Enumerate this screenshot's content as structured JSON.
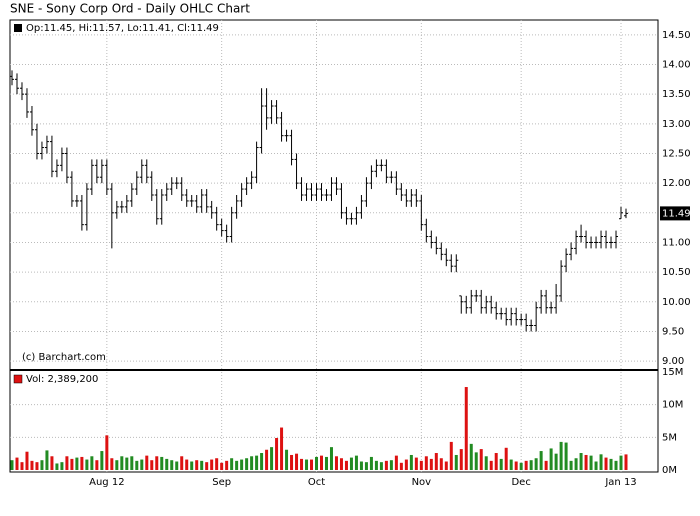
{
  "chart_data": {
    "type": "ohlc",
    "title": "SNE - Sony Corp Ord - Daily OHLC Chart",
    "price_legend": "Op:11.45, Hi:11.57, Lo:11.41, Cl:11.49",
    "volume_legend": "Vol: 2,389,200",
    "credit": "(c) Barchart.com",
    "last_price_label": "11.49",
    "categories": [
      null,
      null,
      null,
      null,
      null,
      null,
      null,
      null,
      null,
      null,
      null,
      null,
      null,
      null,
      null,
      null,
      null,
      null,
      null,
      "Aug 12",
      null,
      null,
      null,
      null,
      null,
      null,
      null,
      null,
      null,
      null,
      null,
      null,
      null,
      null,
      null,
      null,
      null,
      null,
      null,
      null,
      null,
      null,
      "Sep",
      null,
      null,
      null,
      null,
      null,
      null,
      null,
      null,
      null,
      null,
      null,
      null,
      null,
      null,
      null,
      null,
      null,
      null,
      "Oct",
      null,
      null,
      null,
      null,
      null,
      null,
      null,
      null,
      null,
      null,
      null,
      null,
      null,
      null,
      null,
      null,
      null,
      null,
      null,
      null,
      "Nov",
      null,
      null,
      null,
      null,
      null,
      null,
      null,
      null,
      null,
      null,
      null,
      null,
      null,
      null,
      null,
      null,
      null,
      null,
      null,
      "Dec",
      null,
      null,
      null,
      null,
      null,
      null,
      null,
      null,
      null,
      null,
      null,
      null,
      null,
      null,
      null,
      null,
      null,
      null,
      null,
      "Jan 13",
      null
    ],
    "open": [
      13.8,
      13.75,
      13.6,
      13.5,
      13.2,
      12.9,
      12.5,
      12.6,
      12.7,
      12.2,
      12.3,
      12.5,
      12.1,
      11.7,
      11.7,
      11.3,
      11.9,
      12.3,
      12.1,
      12.3,
      11.9,
      11.5,
      11.6,
      11.6,
      11.7,
      11.9,
      12.1,
      12.3,
      12.1,
      11.8,
      11.4,
      11.8,
      11.9,
      12.0,
      12.0,
      11.8,
      11.7,
      11.7,
      11.6,
      11.8,
      11.6,
      11.5,
      11.3,
      11.2,
      11.1,
      11.5,
      11.7,
      11.9,
      12.0,
      12.1,
      12.6,
      13.3,
      13.1,
      13.3,
      13.1,
      12.8,
      12.8,
      12.4,
      12.0,
      11.8,
      11.9,
      11.8,
      11.9,
      11.8,
      11.8,
      12.0,
      11.9,
      11.5,
      11.4,
      11.4,
      11.5,
      11.7,
      12.0,
      12.2,
      12.3,
      12.3,
      12.1,
      12.1,
      11.9,
      11.8,
      11.7,
      11.8,
      11.7,
      11.3,
      11.1,
      11.0,
      10.9,
      10.8,
      10.7,
      10.6,
      10.1,
      10.0,
      9.9,
      10.1,
      10.1,
      9.9,
      10.0,
      9.9,
      9.8,
      9.8,
      9.7,
      9.8,
      9.7,
      9.7,
      9.6,
      9.6,
      9.9,
      10.1,
      9.9,
      9.9,
      10.1,
      10.6,
      10.8,
      10.9,
      11.1,
      11.1,
      11.0,
      11.0,
      11.0,
      11.1,
      11.0,
      11.0,
      11.4,
      11.45
    ],
    "high": [
      13.9,
      13.85,
      13.7,
      13.6,
      13.3,
      13.0,
      12.7,
      12.8,
      12.8,
      12.4,
      12.6,
      12.6,
      12.2,
      11.8,
      11.8,
      12.0,
      12.4,
      12.4,
      12.4,
      12.4,
      12.0,
      11.7,
      11.7,
      11.8,
      12.0,
      12.2,
      12.4,
      12.4,
      12.2,
      11.9,
      11.9,
      12.0,
      12.1,
      12.1,
      12.1,
      11.9,
      11.8,
      11.8,
      11.9,
      11.9,
      11.7,
      11.6,
      11.4,
      11.3,
      11.6,
      11.8,
      12.0,
      12.1,
      12.2,
      12.7,
      13.6,
      13.6,
      13.4,
      13.4,
      13.2,
      12.9,
      12.9,
      12.5,
      12.1,
      12.0,
      12.0,
      12.0,
      12.0,
      11.9,
      12.1,
      12.1,
      12.0,
      11.6,
      11.5,
      11.6,
      11.8,
      12.1,
      12.3,
      12.4,
      12.4,
      12.4,
      12.2,
      12.2,
      12.0,
      11.9,
      11.9,
      11.9,
      11.8,
      11.4,
      11.2,
      11.1,
      11.0,
      10.9,
      10.8,
      10.8,
      10.1,
      10.1,
      10.2,
      10.2,
      10.2,
      10.1,
      10.1,
      10.0,
      9.9,
      9.9,
      9.9,
      9.9,
      9.8,
      9.8,
      9.7,
      10.0,
      10.2,
      10.2,
      10.0,
      10.3,
      10.7,
      10.9,
      11.0,
      11.2,
      11.3,
      11.2,
      11.1,
      11.1,
      11.2,
      11.2,
      11.1,
      11.2,
      11.6,
      11.57
    ],
    "low": [
      13.65,
      13.5,
      13.4,
      13.1,
      12.8,
      12.4,
      12.4,
      12.5,
      12.1,
      12.1,
      12.2,
      12.0,
      11.6,
      11.6,
      11.2,
      11.2,
      11.8,
      12.0,
      12.0,
      11.8,
      10.9,
      11.4,
      11.5,
      11.5,
      11.6,
      11.8,
      12.0,
      12.0,
      11.7,
      11.3,
      11.3,
      11.7,
      11.8,
      11.9,
      11.7,
      11.6,
      11.6,
      11.5,
      11.5,
      11.5,
      11.4,
      11.2,
      11.1,
      11.0,
      11.0,
      11.4,
      11.6,
      11.8,
      11.9,
      12.0,
      12.5,
      12.9,
      13.0,
      13.0,
      12.7,
      12.7,
      12.3,
      11.9,
      11.7,
      11.7,
      11.7,
      11.7,
      11.7,
      11.7,
      11.7,
      11.8,
      11.4,
      11.3,
      11.3,
      11.3,
      11.4,
      11.6,
      11.9,
      12.1,
      12.2,
      12.0,
      12.0,
      11.8,
      11.7,
      11.6,
      11.6,
      11.6,
      11.2,
      11.0,
      10.9,
      10.8,
      10.7,
      10.6,
      10.5,
      10.5,
      9.8,
      9.8,
      9.8,
      10.0,
      9.8,
      9.8,
      9.8,
      9.7,
      9.7,
      9.6,
      9.6,
      9.6,
      9.6,
      9.5,
      9.5,
      9.5,
      9.8,
      9.8,
      9.8,
      9.8,
      10.0,
      10.5,
      10.7,
      10.8,
      11.0,
      10.9,
      10.9,
      10.9,
      10.9,
      10.9,
      10.9,
      10.9,
      11.4,
      11.41
    ],
    "close": [
      13.75,
      13.6,
      13.5,
      13.2,
      12.9,
      12.5,
      12.6,
      12.7,
      12.2,
      12.3,
      12.5,
      12.1,
      11.7,
      11.7,
      11.3,
      11.9,
      12.3,
      12.1,
      12.3,
      11.9,
      11.5,
      11.6,
      11.6,
      11.7,
      11.9,
      12.1,
      12.3,
      12.1,
      11.8,
      11.4,
      11.8,
      11.9,
      12.0,
      12.0,
      11.8,
      11.7,
      11.7,
      11.6,
      11.8,
      11.6,
      11.5,
      11.3,
      11.2,
      11.1,
      11.5,
      11.7,
      11.9,
      12.0,
      12.1,
      12.6,
      13.3,
      13.1,
      13.3,
      13.1,
      12.8,
      12.8,
      12.4,
      12.0,
      11.8,
      11.9,
      11.8,
      11.9,
      11.8,
      11.8,
      12.0,
      11.9,
      11.5,
      11.4,
      11.4,
      11.5,
      11.7,
      12.0,
      12.2,
      12.3,
      12.3,
      12.1,
      12.1,
      11.9,
      11.8,
      11.7,
      11.8,
      11.7,
      11.3,
      11.1,
      11.0,
      10.9,
      10.8,
      10.7,
      10.6,
      10.7,
      10.0,
      9.9,
      10.1,
      10.1,
      9.9,
      10.0,
      9.9,
      9.8,
      9.8,
      9.7,
      9.8,
      9.7,
      9.7,
      9.6,
      9.6,
      9.9,
      10.1,
      9.9,
      9.9,
      10.1,
      10.6,
      10.8,
      10.9,
      11.1,
      11.1,
      11.0,
      11.0,
      11.0,
      11.1,
      11.0,
      11.0,
      11.1,
      11.5,
      11.49
    ],
    "volume": [
      1.5,
      1.9,
      1.2,
      2.8,
      1.4,
      1.2,
      1.5,
      3.0,
      2.1,
      1.0,
      1.2,
      2.1,
      1.7,
      1.9,
      2.0,
      1.6,
      2.1,
      1.5,
      2.9,
      5.3,
      1.8,
      1.5,
      2.1,
      1.9,
      2.1,
      1.4,
      1.6,
      2.2,
      1.5,
      2.1,
      2.0,
      1.7,
      1.5,
      1.3,
      2.1,
      1.6,
      1.3,
      1.5,
      1.4,
      1.2,
      1.6,
      1.8,
      1.1,
      1.4,
      1.8,
      1.4,
      1.6,
      1.8,
      2.1,
      2.2,
      2.6,
      3.1,
      3.5,
      4.9,
      6.5,
      3.1,
      2.3,
      2.5,
      1.7,
      1.6,
      1.6,
      2.0,
      2.2,
      2.0,
      3.5,
      2.1,
      1.8,
      1.4,
      1.9,
      2.2,
      1.3,
      1.2,
      2.0,
      1.4,
      1.2,
      1.4,
      1.5,
      2.2,
      1.1,
      1.6,
      2.3,
      1.9,
      1.4,
      2.1,
      1.7,
      2.6,
      1.8,
      1.3,
      4.3,
      2.3,
      3.2,
      12.7,
      4.0,
      2.7,
      3.2,
      2.1,
      1.4,
      2.6,
      1.7,
      3.4,
      1.6,
      1.3,
      1.1,
      1.4,
      1.5,
      1.8,
      2.9,
      1.4,
      3.3,
      2.5,
      4.3,
      4.2,
      1.4,
      1.8,
      2.6,
      2.3,
      2.2,
      1.3,
      2.4,
      1.9,
      1.7,
      1.4,
      2.2,
      2.3892
    ],
    "color": "#000000",
    "up_color": "#228b22",
    "down_color": "#dd1111",
    "ylim": [
      8.85,
      14.75
    ],
    "yticks": [
      {
        "value": 9,
        "label": "9.00"
      },
      {
        "value": 9.5,
        "label": "9.50"
      },
      {
        "value": 10,
        "label": "10.00"
      },
      {
        "value": 10.5,
        "label": "10.50"
      },
      {
        "value": 11,
        "label": "11.00"
      },
      {
        "value": 11.5,
        "label": "11.50"
      },
      {
        "value": 12,
        "label": "12.00"
      },
      {
        "value": 12.5,
        "label": "12.50"
      },
      {
        "value": 13,
        "label": "13.00"
      },
      {
        "value": 13.5,
        "label": "13.50"
      },
      {
        "value": 14,
        "label": "14.00"
      },
      {
        "value": 14.5,
        "label": "14.50"
      }
    ],
    "y2lim": [
      0,
      15
    ],
    "y2ticks": [
      {
        "value": 0,
        "label": "0M"
      },
      {
        "value": 5,
        "label": "5M"
      },
      {
        "value": 10,
        "label": "10M"
      },
      {
        "value": 15,
        "label": "15M"
      }
    ],
    "grid": true
  }
}
